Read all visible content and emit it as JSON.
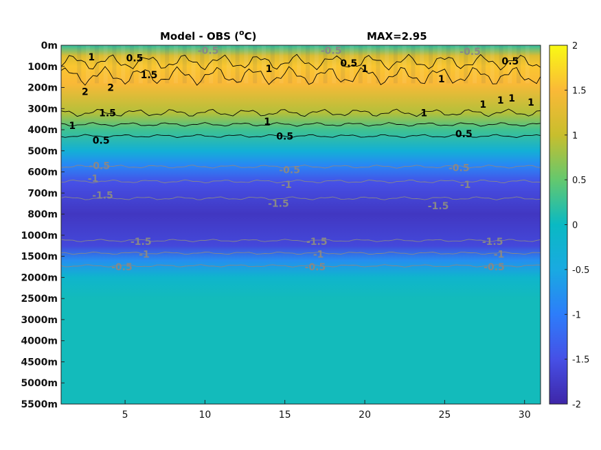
{
  "chart_data": {
    "type": "heatmap",
    "title": "Model - OBS (",
    "title_super": "o",
    "title_unit": "C)",
    "max_label": "MAX=2.95",
    "x_ticks": [
      5,
      10,
      15,
      20,
      25,
      30
    ],
    "xlim": [
      1,
      31
    ],
    "depth_levels": [
      "0m",
      "100m",
      "200m",
      "300m",
      "400m",
      "500m",
      "600m",
      "700m",
      "800m",
      "1000m",
      "1500m",
      "2000m",
      "2500m",
      "3000m",
      "4000m",
      "4500m",
      "5000m",
      "5500m"
    ],
    "colorbar": {
      "ticks": [
        2,
        1.5,
        1,
        0.5,
        0,
        -0.5,
        -1,
        -1.5,
        -2
      ],
      "range": [
        -2,
        2
      ]
    },
    "depth_profile": [
      {
        "level": 0,
        "value": 0.2
      },
      {
        "level": 0.5,
        "value": 1.2
      },
      {
        "level": 1,
        "value": 1.6
      },
      {
        "level": 1.8,
        "value": 1.5
      },
      {
        "level": 3.2,
        "value": 0.9
      },
      {
        "level": 4,
        "value": 0.3
      },
      {
        "level": 5,
        "value": -0.3
      },
      {
        "level": 5.7,
        "value": -0.9
      },
      {
        "level": 6.5,
        "value": -1.5
      },
      {
        "level": 8,
        "value": -1.8
      },
      {
        "level": 9.5,
        "value": -1.6
      },
      {
        "level": 10.2,
        "value": -0.8
      },
      {
        "level": 11,
        "value": -0.15
      },
      {
        "level": 12,
        "value": 0.05
      },
      {
        "level": 17,
        "value": 0.05
      }
    ],
    "contour_labels": [
      {
        "text": "1",
        "x": 2.9,
        "level": 0.55
      },
      {
        "text": "0.5",
        "x": 5.6,
        "level": 0.6
      },
      {
        "text": "1.5",
        "x": 6.5,
        "level": 1.4
      },
      {
        "text": "2",
        "x": 2.5,
        "level": 2.2
      },
      {
        "text": "2",
        "x": 4.1,
        "level": 2.0
      },
      {
        "text": "1.5",
        "x": 3.9,
        "level": 3.2
      },
      {
        "text": "1",
        "x": 1.7,
        "level": 3.8
      },
      {
        "text": "0.5",
        "x": 3.5,
        "level": 4.5
      },
      {
        "text": "1",
        "x": 13.9,
        "level": 3.6
      },
      {
        "text": "0.5",
        "x": 15.0,
        "level": 4.3
      },
      {
        "text": "1",
        "x": 14.0,
        "level": 1.1
      },
      {
        "text": "-0.5",
        "x": 10.2,
        "level": 0.25
      },
      {
        "text": "0.5",
        "x": 19.0,
        "level": 0.85
      },
      {
        "text": "1",
        "x": 20.0,
        "level": 1.1
      },
      {
        "text": "-0.5",
        "x": 17.9,
        "level": 0.25
      },
      {
        "text": "1",
        "x": 24.8,
        "level": 1.6
      },
      {
        "text": "1",
        "x": 23.7,
        "level": 3.2
      },
      {
        "text": "0.5",
        "x": 26.2,
        "level": 4.2
      },
      {
        "text": "0.5",
        "x": 29.1,
        "level": 0.75
      },
      {
        "text": "-0.5",
        "x": 26.6,
        "level": 0.3
      },
      {
        "text": "1",
        "x": 27.4,
        "level": 2.8
      },
      {
        "text": "1",
        "x": 28.5,
        "level": 2.6
      },
      {
        "text": "1",
        "x": 29.2,
        "level": 2.5
      },
      {
        "text": "1",
        "x": 30.4,
        "level": 2.7
      },
      {
        "text": "-0.5",
        "x": 3.4,
        "level": 5.7
      },
      {
        "text": "-1",
        "x": 3.0,
        "level": 6.3
      },
      {
        "text": "-1.5",
        "x": 3.6,
        "level": 7.1
      },
      {
        "text": "-0.5",
        "x": 15.3,
        "level": 5.9
      },
      {
        "text": "-1",
        "x": 15.1,
        "level": 6.6
      },
      {
        "text": "-1.5",
        "x": 14.6,
        "level": 7.5
      },
      {
        "text": "-0.5",
        "x": 25.9,
        "level": 5.8
      },
      {
        "text": "-1",
        "x": 26.3,
        "level": 6.6
      },
      {
        "text": "-1.5",
        "x": 24.6,
        "level": 7.6
      },
      {
        "text": "-1.5",
        "x": 6.0,
        "level": 9.3
      },
      {
        "text": "-1",
        "x": 6.2,
        "level": 9.9
      },
      {
        "text": "-0.5",
        "x": 4.8,
        "level": 10.5
      },
      {
        "text": "-1.5",
        "x": 17.0,
        "level": 9.3
      },
      {
        "text": "-1",
        "x": 17.1,
        "level": 9.9
      },
      {
        "text": "-0.5",
        "x": 16.9,
        "level": 10.5
      },
      {
        "text": "-1.5",
        "x": 28.0,
        "level": 9.3
      },
      {
        "text": "-1",
        "x": 28.4,
        "level": 9.9
      },
      {
        "text": "-0.5",
        "x": 28.1,
        "level": 10.5
      }
    ],
    "contour_lines": [
      {
        "value": 0.5,
        "level": 0.8,
        "amp": 0.25,
        "color": "#000"
      },
      {
        "value": 1.5,
        "level": 1.45,
        "amp": 0.3,
        "color": "#000"
      },
      {
        "value": 1.5,
        "level": 3.2,
        "amp": 0.12,
        "color": "#000"
      },
      {
        "value": 1,
        "level": 3.75,
        "amp": 0.06,
        "color": "#000"
      },
      {
        "value": 0.5,
        "level": 4.3,
        "amp": 0.05,
        "color": "#000"
      },
      {
        "value": -0.5,
        "level": 5.75,
        "amp": 0.05,
        "color": "#888"
      },
      {
        "value": -1,
        "level": 6.45,
        "amp": 0.05,
        "color": "#888"
      },
      {
        "value": -1.5,
        "level": 7.25,
        "amp": 0.05,
        "color": "#888"
      },
      {
        "value": -1.5,
        "level": 9.25,
        "amp": 0.04,
        "color": "#888"
      },
      {
        "value": -1,
        "level": 9.85,
        "amp": 0.04,
        "color": "#888"
      },
      {
        "value": -0.5,
        "level": 10.45,
        "amp": 0.04,
        "color": "#888"
      }
    ]
  }
}
